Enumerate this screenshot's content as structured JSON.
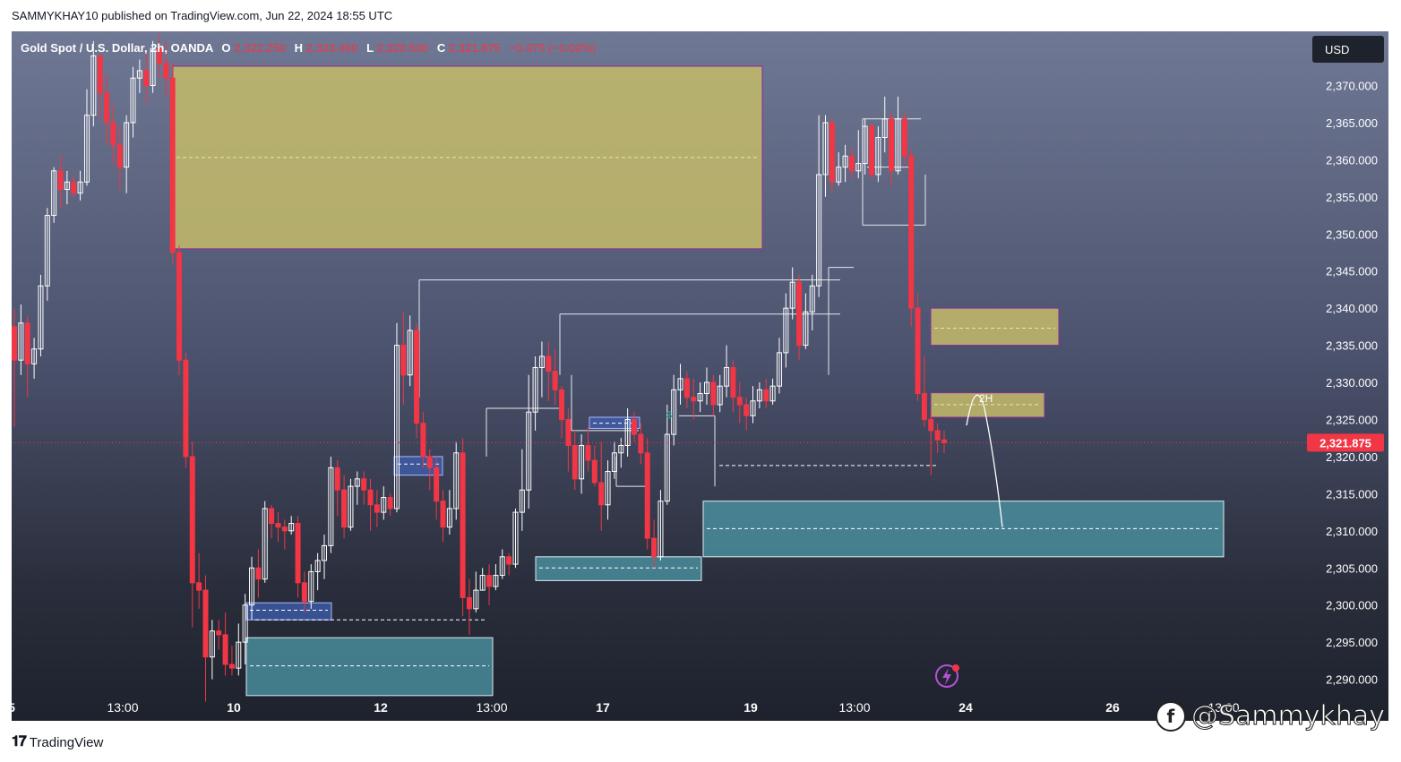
{
  "header": {
    "published": "SAMMYKHAY10 published on TradingView.com, Jun 22, 2024 18:55 UTC"
  },
  "legend": {
    "symbol": "Gold Spot / U.S. Dollar, 2h, OANDA",
    "o_label": "O",
    "o_value": "2,322.250",
    "h_label": "H",
    "h_value": "2,323.490",
    "l_label": "L",
    "l_value": "2,320.500",
    "c_label": "C",
    "c_value": "2,321.875",
    "change": "−0.375 (−0.02%)"
  },
  "currency_button": "USD",
  "last_price_label": "2,321.875",
  "annotation_2h": "2H",
  "footer": {
    "brand": "TradingView"
  },
  "watermark": {
    "handle": "@Sammykhay"
  },
  "colors": {
    "up": "#ffffff",
    "down": "#f23645",
    "price_line": "#f23645",
    "supply_zone": "#c4bb6a",
    "demand_zone": "#4e9aa8",
    "small_ob": "#3f5fb0"
  },
  "chart_data": {
    "type": "candlestick",
    "symbol": "XAUUSD",
    "timeframe": "2h",
    "y_ticks": [
      2370,
      2365,
      2360,
      2355,
      2350,
      2345,
      2340,
      2335,
      2330,
      2325,
      2320,
      2315,
      2310,
      2305,
      2300,
      2295,
      2290
    ],
    "y_tick_labels": [
      "2,370.000",
      "2,365.000",
      "2,360.000",
      "2,355.000",
      "2,350.000",
      "2,345.000",
      "2,340.000",
      "2,335.000",
      "2,330.000",
      "2,325.000",
      "2,320.000",
      "2,315.000",
      "2,310.000",
      "2,305.000",
      "2,300.000",
      "2,295.000",
      "2,290.000"
    ],
    "ylim": [
      2284.4,
      2377.3
    ],
    "x_tick_labels": [
      "5",
      "13:00",
      "10",
      "12",
      "13:00",
      "17",
      "19",
      "13:00",
      "24",
      "26",
      "13:00"
    ],
    "last_price": 2321.875,
    "ohlc_last": {
      "open": 2322.25,
      "high": 2323.49,
      "low": 2320.5,
      "close": 2321.875
    },
    "zones": [
      {
        "kind": "supply",
        "top": 2372.6,
        "bottom": 2348.0,
        "mid": 2360.3
      },
      {
        "kind": "demand",
        "top": 2314.0,
        "bottom": 2306.5,
        "mid": 2310.3
      },
      {
        "kind": "demand",
        "top": 2295.6,
        "bottom": 2287.8,
        "mid": 2291.8
      },
      {
        "kind": "demand",
        "top": 2306.5,
        "bottom": 2303.3,
        "mid": 2305.0
      },
      {
        "kind": "supply",
        "top": 2340.0,
        "bottom": 2335.0,
        "mid": 2337.3
      },
      {
        "kind": "supply_2h",
        "top": 2328.6,
        "bottom": 2325.3,
        "mid": 2327.0
      },
      {
        "kind": "orderblock",
        "top": 2300.3,
        "bottom": 2298.0,
        "mid": 2299.3
      },
      {
        "kind": "orderblock",
        "top": 2320.0,
        "bottom": 2317.5,
        "mid": 2319.0
      },
      {
        "kind": "orderblock",
        "top": 2325.3,
        "bottom": 2323.8,
        "mid": 2324.5
      }
    ],
    "candles": [
      [
        2337.5,
        2333.0,
        2340.0,
        2324.0
      ],
      [
        2333.0,
        2338.0,
        2340.5,
        2331.0
      ],
      [
        2338.0,
        2332.5,
        2339.0,
        2328.0
      ],
      [
        2332.5,
        2334.5,
        2336.0,
        2330.5
      ],
      [
        2334.5,
        2343.0,
        2344.5,
        2333.5
      ],
      [
        2343.0,
        2352.5,
        2353.5,
        2341.0
      ],
      [
        2352.5,
        2358.5,
        2359.0,
        2351.5
      ],
      [
        2358.5,
        2356.0,
        2360.5,
        2353.5
      ],
      [
        2356.0,
        2357.0,
        2358.5,
        2354.0
      ],
      [
        2357.0,
        2355.5,
        2358.0,
        2355.0
      ],
      [
        2355.5,
        2357.0,
        2358.5,
        2354.5
      ],
      [
        2357.0,
        2366.0,
        2369.5,
        2356.5
      ],
      [
        2366.0,
        2374.0,
        2376.0,
        2364.5
      ],
      [
        2374.0,
        2369.0,
        2372.0,
        2365.5
      ],
      [
        2369.0,
        2365.0,
        2371.5,
        2362.0
      ],
      [
        2365.0,
        2362.0,
        2367.5,
        2359.5
      ],
      [
        2362.0,
        2359.0,
        2364.5,
        2356.0
      ],
      [
        2359.0,
        2365.0,
        2366.0,
        2355.5
      ],
      [
        2365.0,
        2371.0,
        2372.5,
        2363.0
      ],
      [
        2371.0,
        2372.0,
        2373.5,
        2369.0
      ],
      [
        2372.0,
        2370.0,
        2374.5,
        2367.5
      ],
      [
        2370.0,
        2375.0,
        2376.0,
        2369.0
      ],
      [
        2375.0,
        2373.0,
        2377.0,
        2371.0
      ],
      [
        2373.0,
        2371.0,
        2376.0,
        2368.5
      ],
      [
        2371.0,
        2347.5,
        2373.0,
        2346.0
      ],
      [
        2347.5,
        2333.0,
        2348.5,
        2331.0
      ],
      [
        2333.0,
        2320.0,
        2334.0,
        2318.5
      ],
      [
        2320.0,
        2303.0,
        2322.0,
        2297.0
      ],
      [
        2303.0,
        2302.0,
        2307.0,
        2299.5
      ],
      [
        2302.0,
        2293.0,
        2304.0,
        2287.0
      ],
      [
        2293.0,
        2296.5,
        2298.0,
        2290.0
      ],
      [
        2296.5,
        2296.0,
        2298.0,
        2294.0
      ],
      [
        2296.0,
        2292.0,
        2299.0,
        2290.5
      ],
      [
        2292.0,
        2291.5,
        2294.5,
        2290.5
      ],
      [
        2291.5,
        2295.0,
        2297.5,
        2290.5
      ],
      [
        2295.0,
        2300.0,
        2301.5,
        2292.0
      ],
      [
        2300.0,
        2305.0,
        2306.5,
        2298.0
      ],
      [
        2305.0,
        2303.5,
        2307.5,
        2301.0
      ],
      [
        2303.5,
        2313.0,
        2314.0,
        2303.0
      ],
      [
        2313.0,
        2311.0,
        2313.5,
        2309.0
      ],
      [
        2311.0,
        2310.5,
        2312.5,
        2308.5
      ],
      [
        2310.5,
        2310.0,
        2311.5,
        2307.5
      ],
      [
        2310.0,
        2311.0,
        2312.0,
        2309.5
      ],
      [
        2311.0,
        2303.0,
        2312.0,
        2301.0
      ],
      [
        2303.0,
        2300.5,
        2304.5,
        2299.0
      ],
      [
        2300.5,
        2304.5,
        2305.5,
        2299.5
      ],
      [
        2304.5,
        2306.0,
        2307.0,
        2302.0
      ],
      [
        2306.0,
        2308.0,
        2309.5,
        2303.5
      ],
      [
        2308.0,
        2318.5,
        2320.0,
        2307.0
      ],
      [
        2318.5,
        2315.5,
        2319.5,
        2312.0
      ],
      [
        2315.5,
        2310.5,
        2317.5,
        2309.0
      ],
      [
        2310.5,
        2316.0,
        2317.0,
        2310.0
      ],
      [
        2316.0,
        2317.0,
        2318.0,
        2313.5
      ],
      [
        2317.0,
        2315.5,
        2318.0,
        2313.5
      ],
      [
        2315.5,
        2313.5,
        2317.0,
        2310.0
      ],
      [
        2313.5,
        2312.5,
        2315.5,
        2310.5
      ],
      [
        2312.5,
        2314.5,
        2316.0,
        2311.5
      ],
      [
        2314.5,
        2313.0,
        2315.0,
        2312.0
      ],
      [
        2313.0,
        2335.0,
        2338.0,
        2312.5
      ],
      [
        2335.0,
        2331.0,
        2339.5,
        2327.0
      ],
      [
        2331.0,
        2337.0,
        2339.0,
        2329.5
      ],
      [
        2337.0,
        2324.5,
        2338.0,
        2322.5
      ],
      [
        2324.5,
        2320.0,
        2326.0,
        2318.5
      ],
      [
        2320.0,
        2318.5,
        2321.0,
        2315.5
      ],
      [
        2318.5,
        2314.0,
        2320.0,
        2311.5
      ],
      [
        2314.0,
        2310.5,
        2315.5,
        2308.5
      ],
      [
        2310.5,
        2313.0,
        2315.5,
        2309.5
      ],
      [
        2313.0,
        2320.5,
        2322.0,
        2311.5
      ],
      [
        2320.5,
        2301.0,
        2322.5,
        2298.5
      ],
      [
        2301.0,
        2299.5,
        2303.5,
        2296.0
      ],
      [
        2299.5,
        2302.0,
        2304.5,
        2299.0
      ],
      [
        2302.0,
        2304.0,
        2305.0,
        2302.0
      ],
      [
        2304.0,
        2302.5,
        2305.5,
        2300.0
      ],
      [
        2302.5,
        2304.0,
        2305.5,
        2302.0
      ],
      [
        2304.0,
        2306.5,
        2307.5,
        2303.5
      ],
      [
        2306.5,
        2305.5,
        2307.0,
        2304.0
      ],
      [
        2305.5,
        2312.5,
        2313.0,
        2305.0
      ],
      [
        2312.5,
        2315.5,
        2321.0,
        2310.0
      ],
      [
        2315.5,
        2326.0,
        2331.0,
        2313.0
      ],
      [
        2326.0,
        2332.0,
        2333.5,
        2323.5
      ],
      [
        2332.0,
        2333.5,
        2335.5,
        2328.0
      ],
      [
        2333.5,
        2331.5,
        2335.5,
        2327.5
      ],
      [
        2331.5,
        2329.0,
        2334.5,
        2327.0
      ],
      [
        2329.0,
        2325.0,
        2329.5,
        2322.5
      ],
      [
        2325.0,
        2321.5,
        2326.5,
        2318.0
      ],
      [
        2321.5,
        2317.0,
        2323.5,
        2315.5
      ],
      [
        2317.0,
        2321.5,
        2323.0,
        2315.0
      ],
      [
        2321.5,
        2319.5,
        2324.0,
        2318.0
      ],
      [
        2319.5,
        2316.5,
        2321.5,
        2316.0
      ],
      [
        2316.5,
        2313.5,
        2322.0,
        2310.0
      ],
      [
        2313.5,
        2318.0,
        2319.5,
        2311.5
      ],
      [
        2318.0,
        2320.5,
        2322.0,
        2317.0
      ],
      [
        2320.5,
        2321.5,
        2322.5,
        2318.5
      ],
      [
        2321.5,
        2325.0,
        2326.5,
        2320.0
      ],
      [
        2325.0,
        2323.0,
        2326.0,
        2322.0
      ],
      [
        2323.0,
        2320.5,
        2324.5,
        2319.0
      ],
      [
        2320.5,
        2309.0,
        2322.5,
        2307.5
      ],
      [
        2309.0,
        2306.5,
        2311.5,
        2305.0
      ],
      [
        2306.5,
        2314.0,
        2315.5,
        2306.0
      ],
      [
        2314.0,
        2323.0,
        2327.0,
        2313.5
      ],
      [
        2323.0,
        2329.0,
        2331.0,
        2321.5
      ],
      [
        2329.0,
        2330.5,
        2332.5,
        2327.0
      ],
      [
        2330.5,
        2328.0,
        2331.5,
        2326.5
      ],
      [
        2328.0,
        2327.5,
        2330.5,
        2325.0
      ],
      [
        2327.5,
        2328.5,
        2330.0,
        2326.0
      ],
      [
        2328.5,
        2330.0,
        2332.0,
        2327.0
      ],
      [
        2330.0,
        2327.0,
        2331.0,
        2325.5
      ],
      [
        2327.0,
        2329.5,
        2331.0,
        2326.0
      ],
      [
        2329.5,
        2332.0,
        2335.0,
        2328.0
      ],
      [
        2332.0,
        2328.0,
        2333.0,
        2326.0
      ],
      [
        2328.0,
        2327.0,
        2330.0,
        2324.5
      ],
      [
        2327.0,
        2325.5,
        2328.0,
        2323.5
      ],
      [
        2325.5,
        2327.5,
        2329.5,
        2324.5
      ],
      [
        2327.5,
        2329.0,
        2330.0,
        2326.5
      ],
      [
        2329.0,
        2327.5,
        2330.5,
        2326.5
      ],
      [
        2327.5,
        2329.5,
        2330.5,
        2327.0
      ],
      [
        2329.5,
        2334.0,
        2336.0,
        2328.5
      ],
      [
        2334.0,
        2340.0,
        2342.0,
        2332.0
      ],
      [
        2340.0,
        2343.5,
        2345.5,
        2338.5
      ],
      [
        2343.5,
        2335.0,
        2344.5,
        2333.0
      ],
      [
        2335.0,
        2339.5,
        2342.0,
        2334.5
      ],
      [
        2339.5,
        2343.0,
        2344.5,
        2337.0
      ],
      [
        2343.0,
        2358.0,
        2366.0,
        2341.5
      ],
      [
        2358.0,
        2365.0,
        2366.0,
        2355.0
      ],
      [
        2365.0,
        2357.0,
        2365.5,
        2355.5
      ],
      [
        2357.0,
        2359.0,
        2361.0,
        2356.5
      ],
      [
        2359.0,
        2360.5,
        2362.0,
        2357.0
      ],
      [
        2360.5,
        2358.5,
        2361.5,
        2357.5
      ],
      [
        2358.5,
        2359.5,
        2364.0,
        2357.5
      ],
      [
        2359.5,
        2364.5,
        2365.5,
        2358.0
      ],
      [
        2364.5,
        2358.0,
        2365.0,
        2357.5
      ],
      [
        2358.0,
        2363.0,
        2364.5,
        2357.0
      ],
      [
        2363.0,
        2365.5,
        2368.5,
        2361.0
      ],
      [
        2365.5,
        2358.5,
        2366.5,
        2356.5
      ],
      [
        2358.5,
        2365.5,
        2368.5,
        2358.0
      ],
      [
        2365.5,
        2360.5,
        2366.5,
        2359.5
      ],
      [
        2360.5,
        2340.0,
        2361.5,
        2337.5
      ],
      [
        2340.0,
        2328.5,
        2342.0,
        2327.5
      ],
      [
        2328.5,
        2325.0,
        2333.5,
        2324.0
      ],
      [
        2325.0,
        2323.5,
        2326.0,
        2317.5
      ],
      [
        2323.5,
        2322.25,
        2324.5,
        2320.5
      ],
      [
        2322.25,
        2321.875,
        2323.49,
        2320.5
      ]
    ]
  }
}
